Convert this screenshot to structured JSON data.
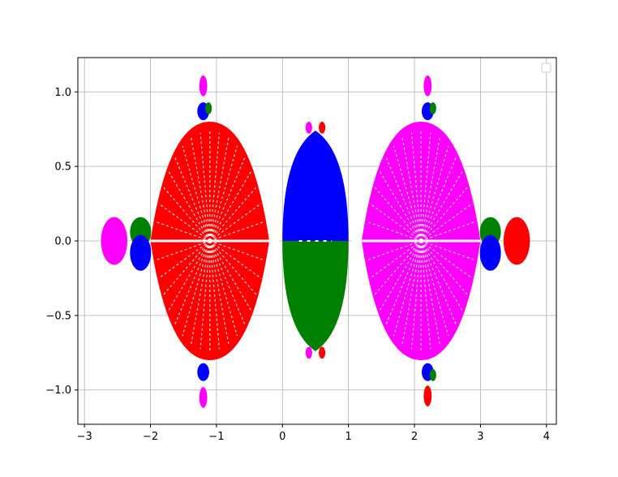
{
  "chart_data": {
    "type": "scatter",
    "title": "",
    "xlabel": "",
    "ylabel": "",
    "xlim": [
      -3.1,
      4.15
    ],
    "ylim": [
      -1.23,
      1.23
    ],
    "x_ticks": [
      -3,
      -2,
      -1,
      0,
      1,
      2,
      3,
      4
    ],
    "x_tick_labels": [
      "−3",
      "−2",
      "−1",
      "0",
      "1",
      "2",
      "3",
      "4"
    ],
    "y_ticks": [
      -1.0,
      -0.5,
      0.0,
      0.5,
      1.0
    ],
    "y_tick_labels": [
      "−1.0",
      "−0.5",
      "0.0",
      "0.5",
      "1.0"
    ],
    "grid": true,
    "legend": {
      "placement": "top-right",
      "entries": []
    },
    "colors": {
      "red": "#ff0000",
      "green": "#008000",
      "blue": "#0000ff",
      "magenta": "#ff00ff",
      "grid": "#b0b0b0"
    },
    "regions": [
      {
        "color": "red",
        "cx": -1.1,
        "cy": 0.0,
        "rx": 0.9,
        "ry": 0.8,
        "shape": "diamond"
      },
      {
        "color": "magenta",
        "cx": 2.1,
        "cy": 0.0,
        "rx": 0.9,
        "ry": 0.8,
        "shape": "diamond"
      },
      {
        "color": "blue",
        "cx": 0.5,
        "cy": 0.37,
        "rx": 0.5,
        "ry": 0.37,
        "shape": "upper-half"
      },
      {
        "color": "green",
        "cx": 0.5,
        "cy": -0.37,
        "rx": 0.5,
        "ry": 0.37,
        "shape": "lower-half"
      },
      {
        "color": "green",
        "cx": -2.15,
        "cy": 0.06,
        "rx": 0.16,
        "ry": 0.1,
        "shape": "ellipse"
      },
      {
        "color": "blue",
        "cx": -2.15,
        "cy": -0.08,
        "rx": 0.16,
        "ry": 0.12,
        "shape": "ellipse"
      },
      {
        "color": "magenta",
        "cx": -2.55,
        "cy": 0.0,
        "rx": 0.2,
        "ry": 0.16,
        "shape": "ellipse"
      },
      {
        "color": "green",
        "cx": 3.15,
        "cy": 0.06,
        "rx": 0.16,
        "ry": 0.1,
        "shape": "ellipse"
      },
      {
        "color": "blue",
        "cx": 3.15,
        "cy": -0.08,
        "rx": 0.16,
        "ry": 0.12,
        "shape": "ellipse"
      },
      {
        "color": "red",
        "cx": 3.55,
        "cy": 0.0,
        "rx": 0.2,
        "ry": 0.16,
        "shape": "ellipse"
      },
      {
        "color": "blue",
        "cx": -1.2,
        "cy": 0.87,
        "rx": 0.09,
        "ry": 0.06,
        "shape": "ellipse"
      },
      {
        "color": "green",
        "cx": -1.12,
        "cy": 0.89,
        "rx": 0.05,
        "ry": 0.04,
        "shape": "ellipse"
      },
      {
        "color": "magenta",
        "cx": -1.2,
        "cy": 1.04,
        "rx": 0.06,
        "ry": 0.07,
        "shape": "ellipse"
      },
      {
        "color": "blue",
        "cx": -1.2,
        "cy": -0.88,
        "rx": 0.09,
        "ry": 0.06,
        "shape": "ellipse"
      },
      {
        "color": "magenta",
        "cx": -1.2,
        "cy": -1.05,
        "rx": 0.06,
        "ry": 0.07,
        "shape": "ellipse"
      },
      {
        "color": "blue",
        "cx": 2.2,
        "cy": 0.87,
        "rx": 0.09,
        "ry": 0.06,
        "shape": "ellipse"
      },
      {
        "color": "green",
        "cx": 2.28,
        "cy": 0.89,
        "rx": 0.05,
        "ry": 0.04,
        "shape": "ellipse"
      },
      {
        "color": "magenta",
        "cx": 2.2,
        "cy": 1.04,
        "rx": 0.06,
        "ry": 0.07,
        "shape": "ellipse"
      },
      {
        "color": "blue",
        "cx": 2.2,
        "cy": -0.88,
        "rx": 0.09,
        "ry": 0.06,
        "shape": "ellipse"
      },
      {
        "color": "green",
        "cx": 2.28,
        "cy": -0.9,
        "rx": 0.05,
        "ry": 0.04,
        "shape": "ellipse"
      },
      {
        "color": "red",
        "cx": 2.2,
        "cy": -1.04,
        "rx": 0.06,
        "ry": 0.07,
        "shape": "ellipse"
      },
      {
        "color": "magenta",
        "cx": 0.4,
        "cy": 0.76,
        "rx": 0.05,
        "ry": 0.04,
        "shape": "ellipse"
      },
      {
        "color": "red",
        "cx": 0.6,
        "cy": 0.76,
        "rx": 0.05,
        "ry": 0.04,
        "shape": "ellipse"
      },
      {
        "color": "magenta",
        "cx": 0.4,
        "cy": -0.75,
        "rx": 0.05,
        "ry": 0.04,
        "shape": "ellipse"
      },
      {
        "color": "red",
        "cx": 0.6,
        "cy": -0.75,
        "rx": 0.05,
        "ry": 0.04,
        "shape": "ellipse"
      }
    ]
  }
}
